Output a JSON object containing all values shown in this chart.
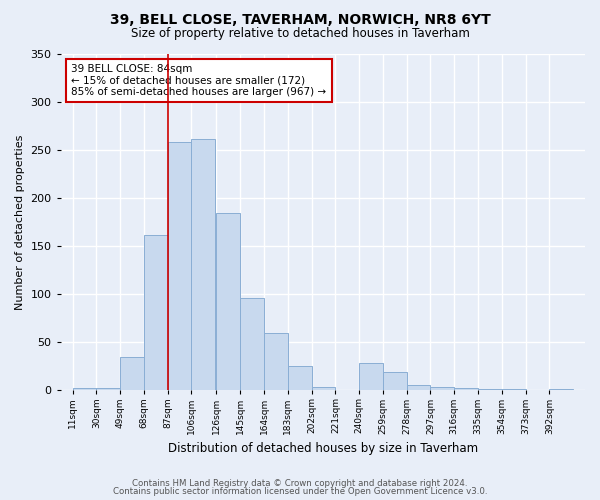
{
  "title": "39, BELL CLOSE, TAVERHAM, NORWICH, NR8 6YT",
  "subtitle": "Size of property relative to detached houses in Taverham",
  "xlabel": "Distribution of detached houses by size in Taverham",
  "ylabel": "Number of detached properties",
  "footnote1": "Contains HM Land Registry data © Crown copyright and database right 2024.",
  "footnote2": "Contains public sector information licensed under the Open Government Licence v3.0.",
  "annotation_title": "39 BELL CLOSE: 84sqm",
  "annotation_line1": "← 15% of detached houses are smaller (172)",
  "annotation_line2": "85% of semi-detached houses are larger (967) →",
  "bar_color": "#c8d9ee",
  "bar_edge_color": "#8aaed4",
  "vline_color": "#cc0000",
  "annotation_box_color": "white",
  "annotation_box_edge": "#cc0000",
  "bg_color": "#e8eef8",
  "plot_bg_color": "#e8eef8",
  "grid_color": "white",
  "categories": [
    "11sqm",
    "30sqm",
    "49sqm",
    "68sqm",
    "87sqm",
    "106sqm",
    "126sqm",
    "145sqm",
    "164sqm",
    "183sqm",
    "202sqm",
    "221sqm",
    "240sqm",
    "259sqm",
    "278sqm",
    "297sqm",
    "316sqm",
    "335sqm",
    "354sqm",
    "373sqm",
    "392sqm"
  ],
  "bin_edges": [
    11,
    30,
    49,
    68,
    87,
    106,
    126,
    145,
    164,
    183,
    202,
    221,
    240,
    259,
    278,
    297,
    316,
    335,
    354,
    373,
    392
  ],
  "values": [
    2,
    2,
    35,
    162,
    258,
    262,
    185,
    96,
    60,
    25,
    4,
    0,
    28,
    19,
    6,
    3,
    2,
    1,
    1,
    0,
    1
  ],
  "vline_x": 87,
  "ylim": [
    0,
    350
  ],
  "yticks": [
    0,
    50,
    100,
    150,
    200,
    250,
    300,
    350
  ]
}
